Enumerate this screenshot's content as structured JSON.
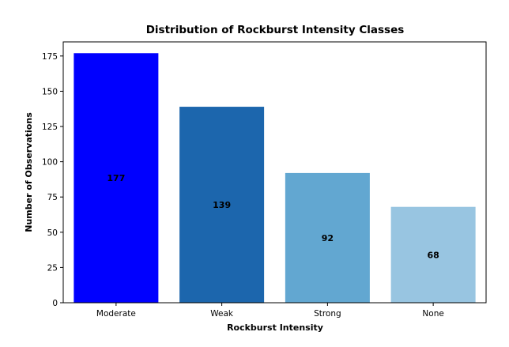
{
  "chart_data": {
    "type": "bar",
    "title": "Distribution of Rockburst Intensity Classes",
    "xlabel": "Rockburst Intensity",
    "ylabel": "Number of Observations",
    "categories": [
      "Moderate",
      "Weak",
      "Strong",
      "None"
    ],
    "values": [
      177,
      139,
      92,
      68
    ],
    "data_labels": [
      "177",
      "139",
      "92",
      "68"
    ],
    "colors": [
      "#0000ff",
      "#1c66ad",
      "#62a7d1",
      "#98c5e1"
    ],
    "ylim": [
      0,
      185
    ],
    "yticks": [
      0,
      25,
      50,
      75,
      100,
      125,
      150,
      175
    ],
    "ytick_labels": [
      "0",
      "25",
      "50",
      "75",
      "100",
      "125",
      "150",
      "175"
    ],
    "grid": false,
    "legend": "none"
  }
}
